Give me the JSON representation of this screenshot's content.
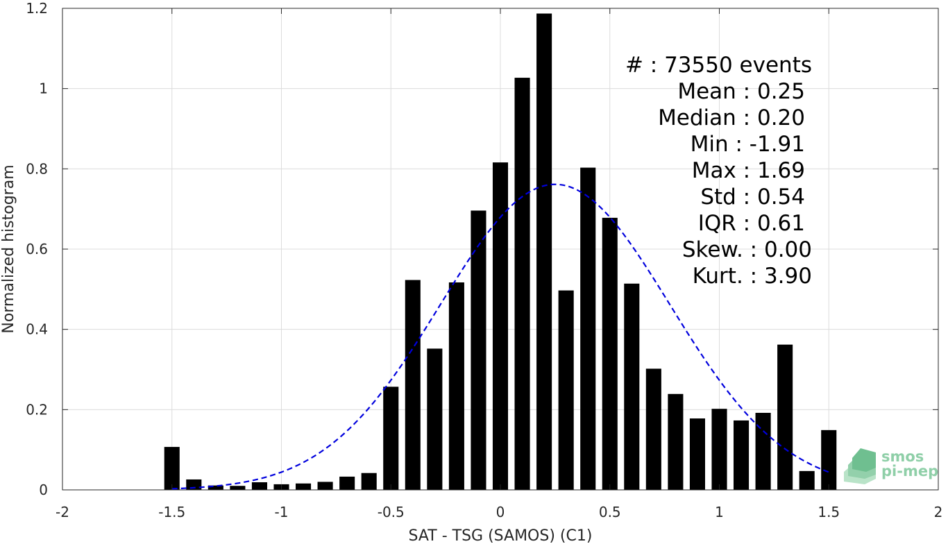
{
  "chart_data": {
    "type": "bar",
    "xlabel": "SAT - TSG (SAMOS) (C1)",
    "ylabel": "Normalized histogram",
    "xlim": [
      -2,
      2
    ],
    "ylim": [
      0,
      1.2
    ],
    "x_ticks": [
      "-2",
      "-1.5",
      "-1",
      "-0.5",
      "0",
      "0.5",
      "1",
      "1.5",
      "2"
    ],
    "y_ticks": [
      "0",
      "0.2",
      "0.4",
      "0.6",
      "0.8",
      "1",
      "1.2"
    ],
    "grid": true,
    "bar_color": "#000000",
    "bins": [
      -1.5,
      -1.4,
      -1.3,
      -1.2,
      -1.1,
      -1.0,
      -0.9,
      -0.8,
      -0.7,
      -0.6,
      -0.5,
      -0.4,
      -0.3,
      -0.2,
      -0.1,
      0.0,
      0.1,
      0.2,
      0.3,
      0.4,
      0.5,
      0.6,
      0.7,
      0.8,
      0.9,
      1.0,
      1.1,
      1.2,
      1.3,
      1.4,
      1.5
    ],
    "values": [
      0.107,
      0.026,
      0.011,
      0.01,
      0.019,
      0.014,
      0.016,
      0.02,
      0.033,
      0.042,
      0.257,
      0.523,
      0.352,
      0.517,
      0.696,
      0.816,
      1.027,
      1.187,
      0.497,
      0.803,
      0.678,
      0.514,
      0.302,
      0.239,
      0.178,
      0.202,
      0.173,
      0.192,
      0.362,
      0.047,
      0.149
    ],
    "fit": {
      "type": "normal",
      "mean": 0.25,
      "std": 0.524,
      "x_range": [
        -1.5,
        1.5
      ],
      "color": "#0000dd",
      "style": "dashed"
    },
    "annotations": [
      "#  : 73550 events",
      "Mean : 0.25",
      "Median : 0.20",
      "Min : -1.91",
      "Max : 1.69",
      "Std : 0.54",
      "IQR : 0.61",
      "Skew. : 0.00",
      "Kurt. : 3.90"
    ]
  },
  "logo": {
    "line1": "smos",
    "line2": "pi-mep"
  }
}
